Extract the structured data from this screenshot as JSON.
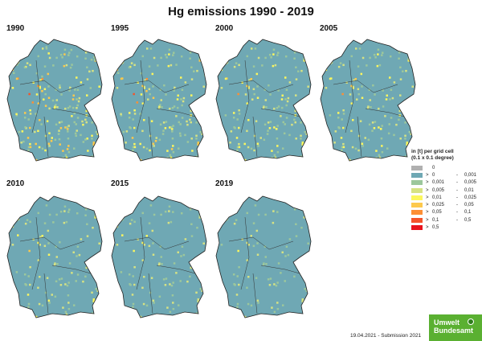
{
  "title": "Hg emissions 1990 - 2019",
  "maps": [
    {
      "year": "1990",
      "intensity": 1.0
    },
    {
      "year": "1995",
      "intensity": 0.85
    },
    {
      "year": "2000",
      "intensity": 0.75
    },
    {
      "year": "2005",
      "intensity": 0.7
    },
    {
      "year": "2010",
      "intensity": 0.55
    },
    {
      "year": "2015",
      "intensity": 0.5
    },
    {
      "year": "2019",
      "intensity": 0.4
    }
  ],
  "legend": {
    "title_line1": "in [t] per grid cell",
    "title_line2": "(0.1 x 0.1 degree)",
    "classes": [
      {
        "color": "#b0b0b0",
        "op": "",
        "lo": "0",
        "dash": "",
        "hi": ""
      },
      {
        "color": "#6fa8b4",
        "op": ">",
        "lo": "0",
        "dash": "-",
        "hi": "0,001"
      },
      {
        "color": "#9cc79c",
        "op": ">",
        "lo": "0,001",
        "dash": "-",
        "hi": "0,005"
      },
      {
        "color": "#d6e283",
        "op": ">",
        "lo": "0,005",
        "dash": "-",
        "hi": "0,01"
      },
      {
        "color": "#fcf75e",
        "op": ">",
        "lo": "0,01",
        "dash": "-",
        "hi": "0,025"
      },
      {
        "color": "#fdc94c",
        "op": ">",
        "lo": "0,025",
        "dash": "-",
        "hi": "0,05"
      },
      {
        "color": "#fd8f35",
        "op": ">",
        "lo": "0,05",
        "dash": "-",
        "hi": "0,1"
      },
      {
        "color": "#f4542a",
        "op": ">",
        "lo": "0,1",
        "dash": "-",
        "hi": "0,5"
      },
      {
        "color": "#e8141c",
        "op": ">",
        "lo": "0,5",
        "dash": "",
        "hi": ""
      }
    ]
  },
  "footer": "19.04.2021 - Submission 2021",
  "logo": {
    "line1": "Umwelt",
    "line2": "Bundesamt"
  }
}
